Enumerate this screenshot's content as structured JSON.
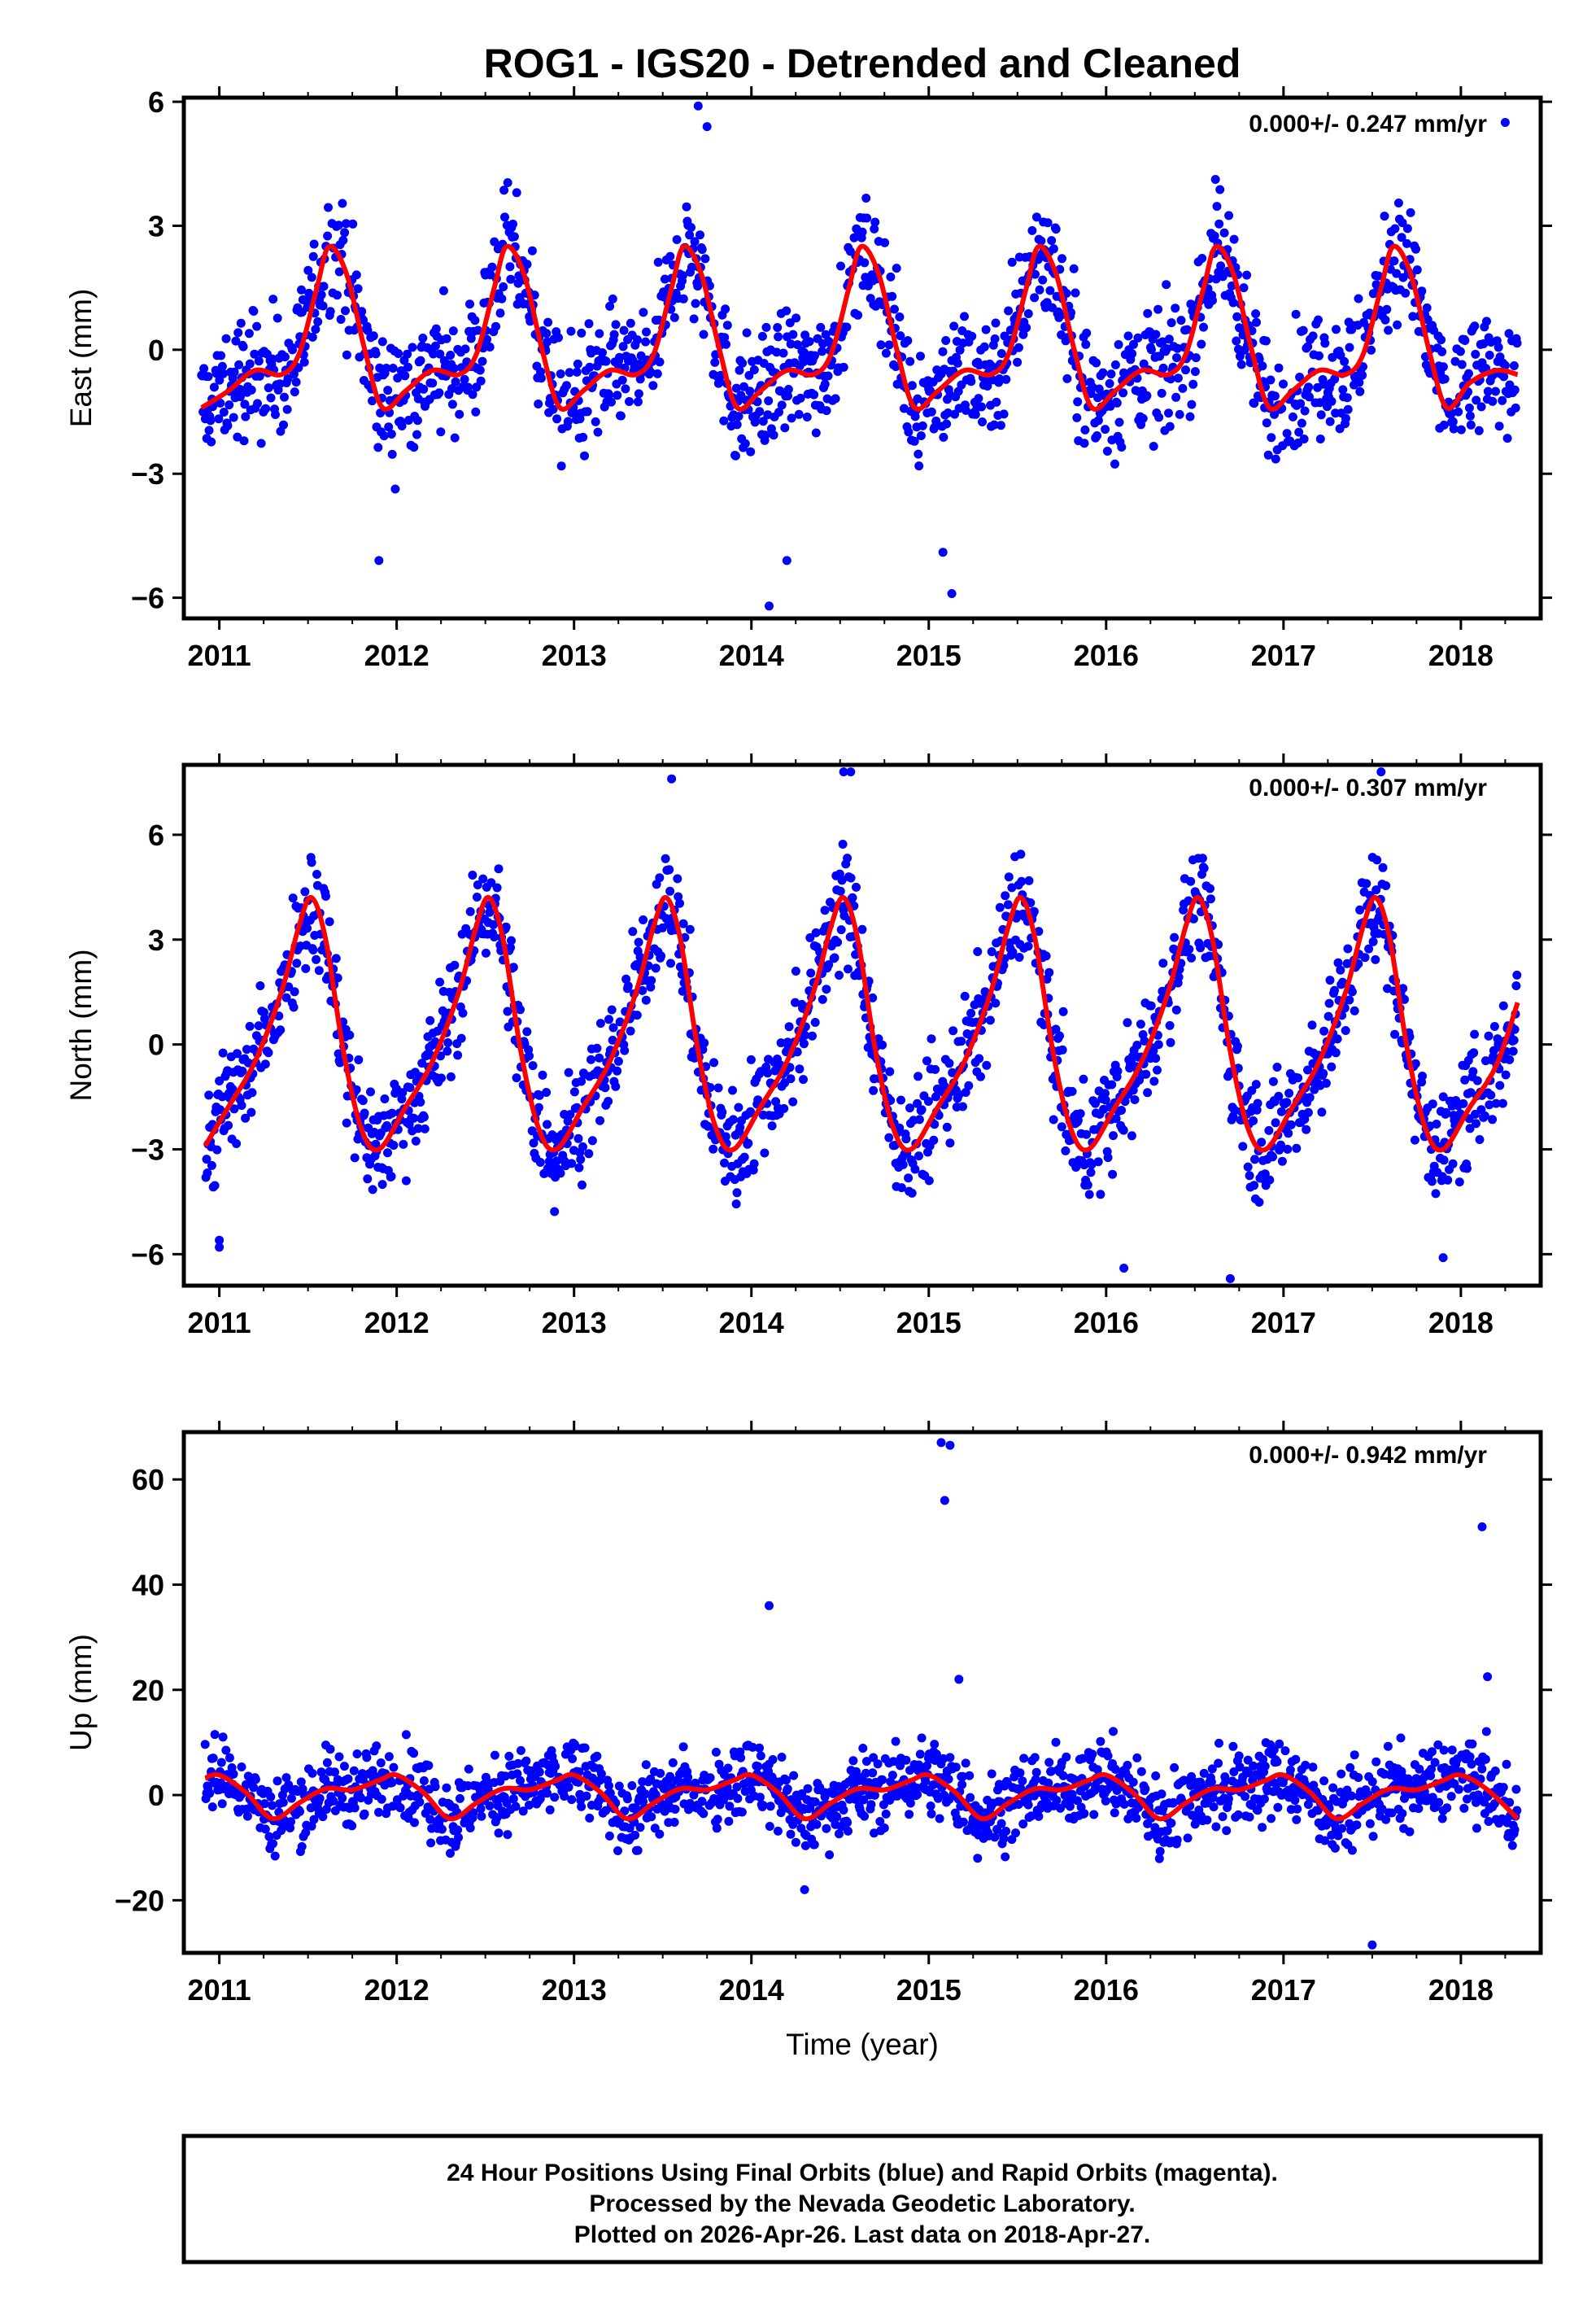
{
  "chart_data": [
    {
      "type": "scatter",
      "panel": "east",
      "title": "ROG1 - IGS20 - Detrended and Cleaned",
      "ylabel": "East (mm)",
      "xlabel": "",
      "xlim": [
        2010.8,
        2018.45
      ],
      "ylim": [
        -6.5,
        6.1
      ],
      "xticks": [
        2011,
        2012,
        2013,
        2014,
        2015,
        2016,
        2017,
        2018
      ],
      "yticks": [
        -6,
        -3,
        0,
        3,
        6
      ],
      "ytick_labels": [
        "−6",
        "−3",
        "0",
        "3",
        "6"
      ],
      "rate_label": "0.000+/- 0.247 mm/yr",
      "series": [
        {
          "name": "Final Orbits (blue)",
          "color": "#0000ff",
          "kind": "points",
          "spread": 1.05
        },
        {
          "name": "Seasonal model",
          "color": "#ff0000",
          "kind": "curve",
          "x": [
            2010.9,
            2011.05,
            2011.2,
            2011.35,
            2011.45,
            2011.55,
            2011.62,
            2011.72,
            2011.82,
            2011.92,
            2012.05,
            2012.2,
            2012.35,
            2012.45,
            2012.55,
            2012.62,
            2012.72,
            2012.82,
            2012.92,
            2013.05,
            2013.2,
            2013.35,
            2013.45,
            2013.55,
            2013.62,
            2013.72,
            2013.82,
            2013.92,
            2014.05,
            2014.2,
            2014.35,
            2014.45,
            2014.55,
            2014.62,
            2014.72,
            2014.82,
            2014.92,
            2015.05,
            2015.2,
            2015.35,
            2015.45,
            2015.55,
            2015.62,
            2015.72,
            2015.82,
            2015.92,
            2016.05,
            2016.2,
            2016.35,
            2016.45,
            2016.55,
            2016.62,
            2016.72,
            2016.82,
            2016.92,
            2017.05,
            2017.2,
            2017.35,
            2017.45,
            2017.55,
            2017.62,
            2017.72,
            2017.82,
            2017.92,
            2018.05,
            2018.2,
            2018.32
          ],
          "y": [
            -1.4,
            -1.0,
            -0.5,
            -0.6,
            -0.1,
            1.5,
            2.5,
            1.8,
            0.0,
            -1.4,
            -1.0,
            -0.5,
            -0.6,
            -0.1,
            1.5,
            2.5,
            1.8,
            0.0,
            -1.4,
            -1.0,
            -0.5,
            -0.6,
            -0.1,
            1.5,
            2.5,
            1.8,
            0.0,
            -1.4,
            -1.0,
            -0.5,
            -0.6,
            -0.1,
            1.5,
            2.5,
            1.8,
            0.0,
            -1.4,
            -1.0,
            -0.5,
            -0.6,
            -0.1,
            1.5,
            2.5,
            1.8,
            0.0,
            -1.4,
            -1.0,
            -0.5,
            -0.6,
            -0.1,
            1.5,
            2.5,
            1.8,
            0.0,
            -1.4,
            -1.0,
            -0.5,
            -0.6,
            -0.1,
            1.5,
            2.5,
            1.8,
            0.0,
            -1.4,
            -0.8,
            -0.5,
            -0.6
          ]
        },
        {
          "name": "Outliers (blue)",
          "color": "#0000ff",
          "kind": "points",
          "x": [
            2011.9,
            2013.7,
            2013.75,
            2014.1,
            2014.2,
            2015.08,
            2015.13,
            2018.25
          ],
          "y": [
            -5.1,
            5.9,
            5.4,
            -6.2,
            -5.1,
            -4.9,
            -5.9,
            5.5
          ]
        }
      ]
    },
    {
      "type": "scatter",
      "panel": "north",
      "title": "",
      "ylabel": "North (mm)",
      "xlabel": "",
      "xlim": [
        2010.8,
        2018.45
      ],
      "ylim": [
        -6.9,
        8.0
      ],
      "xticks": [
        2011,
        2012,
        2013,
        2014,
        2015,
        2016,
        2017,
        2018
      ],
      "yticks": [
        -6,
        -3,
        0,
        3,
        6
      ],
      "ytick_labels": [
        "−6",
        "−3",
        "0",
        "3",
        "6"
      ],
      "rate_label": "0.000+/- 0.307 mm/yr",
      "series": [
        {
          "name": "Final Orbits (blue)",
          "color": "#0000ff",
          "kind": "points",
          "spread": 1.15
        },
        {
          "name": "Seasonal model",
          "color": "#ff0000",
          "kind": "curve",
          "x": [
            2010.92,
            2011.05,
            2011.2,
            2011.35,
            2011.45,
            2011.52,
            2011.6,
            2011.7,
            2011.8,
            2011.9,
            2012.05,
            2012.2,
            2012.35,
            2012.45,
            2012.52,
            2012.6,
            2012.7,
            2012.8,
            2012.9,
            2013.05,
            2013.2,
            2013.35,
            2013.45,
            2013.52,
            2013.6,
            2013.7,
            2013.8,
            2013.9,
            2014.05,
            2014.2,
            2014.35,
            2014.45,
            2014.52,
            2014.6,
            2014.7,
            2014.8,
            2014.9,
            2015.05,
            2015.2,
            2015.35,
            2015.45,
            2015.52,
            2015.6,
            2015.7,
            2015.8,
            2015.9,
            2016.05,
            2016.2,
            2016.35,
            2016.45,
            2016.52,
            2016.6,
            2016.7,
            2016.8,
            2016.9,
            2017.05,
            2017.2,
            2017.35,
            2017.45,
            2017.52,
            2017.6,
            2017.7,
            2017.8,
            2017.9,
            2018.05,
            2018.2,
            2018.32
          ],
          "y": [
            -2.9,
            -1.8,
            -0.5,
            1.5,
            3.4,
            4.2,
            3.0,
            -0.2,
            -2.4,
            -3.0,
            -1.8,
            -0.5,
            1.5,
            3.4,
            4.2,
            3.0,
            -0.2,
            -2.4,
            -3.0,
            -1.8,
            -0.5,
            1.5,
            3.4,
            4.2,
            3.0,
            -0.2,
            -2.4,
            -3.0,
            -1.8,
            -0.5,
            1.5,
            3.4,
            4.2,
            3.0,
            -0.2,
            -2.4,
            -3.0,
            -1.8,
            -0.5,
            1.5,
            3.4,
            4.2,
            3.0,
            -0.2,
            -2.4,
            -3.0,
            -1.8,
            -0.5,
            1.5,
            3.4,
            4.2,
            3.0,
            -0.2,
            -2.4,
            -3.0,
            -1.8,
            -0.5,
            1.5,
            3.4,
            4.2,
            3.0,
            -0.2,
            -2.4,
            -3.0,
            -1.8,
            -0.6,
            1.2
          ]
        },
        {
          "name": "Outliers (blue)",
          "color": "#0000ff",
          "kind": "points",
          "x": [
            2011.0,
            2011.0,
            2013.55,
            2014.52,
            2014.56,
            2016.7,
            2017.55,
            2017.9,
            2016.1
          ],
          "y": [
            -5.6,
            -5.8,
            7.6,
            7.8,
            7.8,
            -6.7,
            7.8,
            -6.1,
            -6.4
          ]
        }
      ]
    },
    {
      "type": "scatter",
      "panel": "up",
      "title": "",
      "ylabel": "Up (mm)",
      "xlabel": "Time (year)",
      "xlim": [
        2010.8,
        2018.45
      ],
      "ylim": [
        -30,
        69
      ],
      "xticks": [
        2011,
        2012,
        2013,
        2014,
        2015,
        2016,
        2017,
        2018
      ],
      "yticks": [
        -20,
        0,
        20,
        40,
        60
      ],
      "ytick_labels": [
        "−20",
        "0",
        "20",
        "40",
        "60"
      ],
      "rate_label": "0.000+/- 0.942 mm/yr",
      "series": [
        {
          "name": "Final Orbits (blue)",
          "color": "#0000ff",
          "kind": "points",
          "spread": 5.2
        },
        {
          "name": "Seasonal model",
          "color": "#ff0000",
          "kind": "curve",
          "x": [
            2010.92,
            2011.0,
            2011.15,
            2011.3,
            2011.45,
            2011.6,
            2011.75,
            2011.9,
            2012.0,
            2012.15,
            2012.3,
            2012.45,
            2012.6,
            2012.75,
            2012.9,
            2013.0,
            2013.15,
            2013.3,
            2013.45,
            2013.6,
            2013.75,
            2013.9,
            2014.0,
            2014.15,
            2014.3,
            2014.45,
            2014.6,
            2014.75,
            2014.9,
            2015.0,
            2015.15,
            2015.3,
            2015.45,
            2015.6,
            2015.75,
            2015.9,
            2016.0,
            2016.15,
            2016.3,
            2016.45,
            2016.6,
            2016.75,
            2016.9,
            2017.0,
            2017.15,
            2017.3,
            2017.45,
            2017.6,
            2017.75,
            2017.9,
            2018.0,
            2018.15,
            2018.32
          ],
          "y": [
            3.2,
            3.8,
            0.5,
            -4.5,
            -1.5,
            1.2,
            1.0,
            2.8,
            3.8,
            0.5,
            -4.5,
            -1.5,
            1.2,
            1.0,
            2.8,
            3.8,
            0.5,
            -4.5,
            -1.5,
            1.2,
            1.0,
            2.8,
            3.8,
            0.5,
            -4.5,
            -1.5,
            1.2,
            1.0,
            2.8,
            3.8,
            0.5,
            -4.5,
            -1.5,
            1.2,
            1.0,
            2.8,
            3.8,
            0.5,
            -4.5,
            -1.5,
            1.2,
            1.0,
            2.8,
            3.8,
            0.5,
            -4.5,
            -1.5,
            1.2,
            1.0,
            2.8,
            3.8,
            1.0,
            -4.5
          ]
        },
        {
          "name": "Outliers (blue)",
          "color": "#0000ff",
          "kind": "points",
          "x": [
            2014.1,
            2015.07,
            2015.12,
            2015.09,
            2015.17,
            2018.12,
            2018.15,
            2017.5,
            2014.3
          ],
          "y": [
            36.0,
            67.0,
            66.5,
            56.0,
            22.0,
            51.0,
            22.5,
            -28.5,
            -18.0
          ]
        }
      ]
    }
  ],
  "footer": {
    "line1": "24 Hour Positions Using Final Orbits (blue) and Rapid Orbits (magenta).",
    "line2": "Processed by the Nevada Geodetic Laboratory.",
    "line3": "Plotted on 2026-Apr-26. Last data on 2018-Apr-27."
  }
}
